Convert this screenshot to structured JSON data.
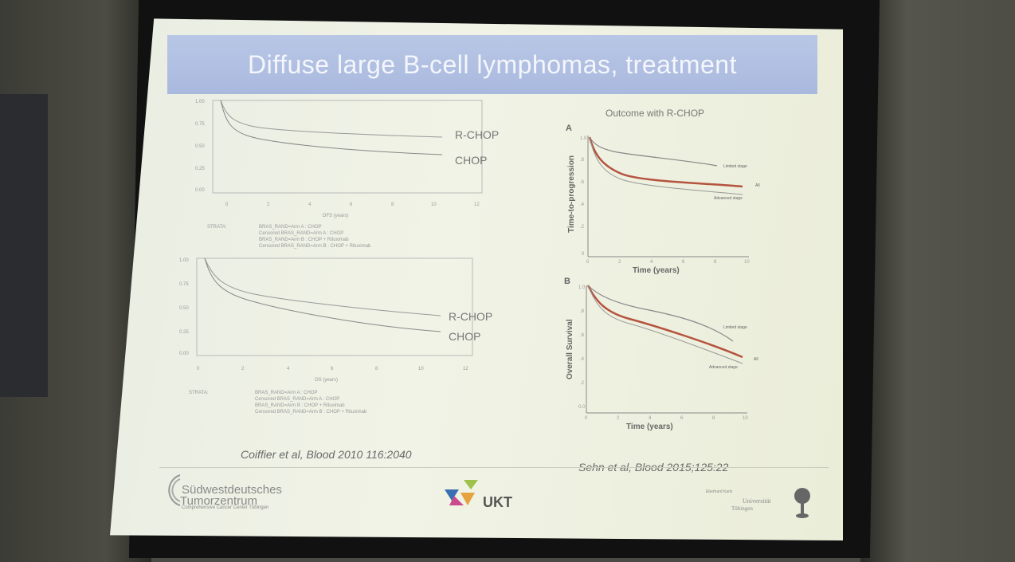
{
  "slide": {
    "title": "Diffuse large B-cell lymphomas, treatment"
  },
  "left_top_chart": {
    "series_labels": [
      "R-CHOP",
      "CHOP"
    ],
    "y_ticks": [
      "1.00",
      "0.75",
      "0.50",
      "0.25",
      "0.00"
    ],
    "x_ticks": [
      "0",
      "2",
      "4",
      "6",
      "8",
      "10",
      "12"
    ],
    "xlabel": "DFS (years)",
    "legend_title": "STRATA:",
    "legend_items": [
      "BRAS_RAND=Arm A : CHOP",
      "Censored BRAS_RAND=Arm A : CHOP",
      "BRAS_RAND=Arm B : CHOP + Rituximab",
      "Censored BRAS_RAND=Arm B : CHOP + Rituximab"
    ]
  },
  "left_bottom_chart": {
    "series_labels": [
      "R-CHOP",
      "CHOP"
    ],
    "y_ticks": [
      "1.00",
      "0.75",
      "0.50",
      "0.25",
      "0.00"
    ],
    "x_ticks": [
      "0",
      "2",
      "4",
      "6",
      "8",
      "10",
      "12"
    ],
    "xlabel": "OS (years)",
    "legend_title": "STRATA:",
    "legend_items": [
      "BRAS_RAND=Arm A : CHOP",
      "Censored BRAS_RAND=Arm A : CHOP",
      "BRAS_RAND=Arm B : CHOP + Rituximab",
      "Censored BRAS_RAND=Arm B : CHOP + Rituximab"
    ]
  },
  "right_panel": {
    "heading": "Outcome with R-CHOP",
    "panel_a": {
      "letter": "A",
      "ylabel": "Time-to-progression",
      "xlabel": "Time (years)",
      "curve_labels": [
        "Limited stage",
        "All",
        "Advanced stage"
      ],
      "y_ticks": [
        "1.0",
        ".8",
        ".6",
        ".4",
        ".2",
        "0"
      ],
      "x_ticks": [
        "0",
        "2",
        "4",
        "6",
        "8",
        "10"
      ]
    },
    "panel_b": {
      "letter": "B",
      "ylabel": "Overall Survival",
      "xlabel": "Time (years)",
      "curve_labels": [
        "Limited stage",
        "All",
        "Advanced stage"
      ],
      "y_ticks": [
        "1.0",
        ".8",
        ".6",
        ".4",
        ".2",
        "0.0"
      ],
      "x_ticks": [
        "0",
        "2",
        "4",
        "6",
        "8",
        "10"
      ]
    }
  },
  "references": {
    "left": "Coiffier et al, Blood 2010 116:2040",
    "right": "Sehn et al, Blood 2015;125:22"
  },
  "logos": {
    "swt_line1": "Südwestdeutsches",
    "swt_line2": "Tumorzentrum",
    "swt_line3": "Comprehensive Cancer Center Tübingen",
    "ukt": "UKT",
    "uni_line1": "Eberhard Karls",
    "uni_line2": "Universität",
    "uni_line3": "Tübingen"
  },
  "colors": {
    "title_bar": "#aebde0",
    "curve_gray": "#777777",
    "curve_red": "#b5533f"
  }
}
